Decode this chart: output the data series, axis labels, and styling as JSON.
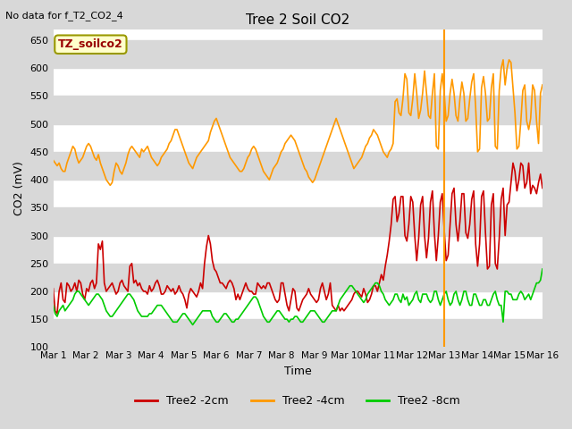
{
  "title": "Tree 2 Soil CO2",
  "no_data_text": "No data for f_T2_CO2_4",
  "xlabel": "Time",
  "ylabel": "CO2 (mV)",
  "ylim": [
    100,
    670
  ],
  "yticks": [
    100,
    150,
    200,
    250,
    300,
    350,
    400,
    450,
    500,
    550,
    600,
    650
  ],
  "xtick_labels": [
    "Mar 1",
    "Mar 2",
    "Mar 3",
    "Mar 4",
    "Mar 5",
    "Mar 6",
    "Mar 7",
    "Mar 8",
    "Mar 9",
    "Mar 10",
    "Mar 11",
    "Mar 12",
    "Mar 13",
    "Mar 14",
    "Mar 15",
    "Mar 16"
  ],
  "fig_bg_color": "#d8d8d8",
  "plot_bg_color": "#ffffff",
  "grid_color": "#d8d8d8",
  "legend_label": "TZ_soilco2",
  "legend_box_color": "#ffffcc",
  "legend_box_edge_color": "#999900",
  "legend_text_color": "#990000",
  "line_colors": {
    "2cm": "#cc0000",
    "4cm": "#ff9900",
    "8cm": "#00cc00"
  },
  "vertical_line_x": 12.0,
  "vertical_line_color": "#ff9900",
  "series_2cm": [
    205,
    165,
    160,
    200,
    215,
    185,
    180,
    215,
    210,
    200,
    205,
    215,
    200,
    220,
    215,
    195,
    185,
    205,
    200,
    215,
    220,
    205,
    215,
    285,
    275,
    290,
    215,
    200,
    205,
    210,
    215,
    205,
    195,
    200,
    215,
    220,
    210,
    205,
    200,
    245,
    250,
    215,
    220,
    210,
    215,
    205,
    200,
    200,
    195,
    210,
    200,
    205,
    215,
    220,
    210,
    195,
    195,
    200,
    210,
    205,
    200,
    205,
    195,
    200,
    210,
    200,
    195,
    185,
    170,
    195,
    205,
    200,
    195,
    190,
    200,
    215,
    205,
    250,
    280,
    300,
    285,
    255,
    240,
    235,
    225,
    215,
    215,
    210,
    205,
    215,
    220,
    215,
    205,
    185,
    195,
    185,
    195,
    205,
    215,
    205,
    200,
    200,
    195,
    195,
    215,
    210,
    205,
    210,
    205,
    215,
    215,
    205,
    195,
    185,
    180,
    185,
    215,
    215,
    195,
    175,
    165,
    185,
    205,
    200,
    170,
    165,
    175,
    185,
    190,
    195,
    205,
    195,
    190,
    185,
    180,
    185,
    205,
    215,
    200,
    185,
    195,
    215,
    175,
    170,
    165,
    175,
    165,
    170,
    165,
    170,
    175,
    180,
    185,
    195,
    200,
    200,
    195,
    190,
    205,
    195,
    180,
    185,
    195,
    210,
    210,
    200,
    215,
    230,
    220,
    245,
    265,
    290,
    320,
    365,
    370,
    325,
    340,
    370,
    370,
    300,
    290,
    320,
    370,
    360,
    300,
    255,
    295,
    355,
    370,
    300,
    260,
    295,
    360,
    380,
    305,
    255,
    300,
    360,
    375,
    310,
    255,
    265,
    320,
    375,
    385,
    320,
    290,
    325,
    375,
    375,
    305,
    295,
    320,
    365,
    380,
    285,
    245,
    285,
    370,
    380,
    305,
    240,
    245,
    355,
    375,
    250,
    240,
    295,
    365,
    385,
    300,
    355,
    360,
    395,
    430,
    415,
    380,
    400,
    430,
    425,
    385,
    395,
    430,
    375,
    390,
    385,
    375,
    395,
    410,
    385
  ],
  "series_4cm": [
    435,
    430,
    425,
    430,
    420,
    415,
    415,
    430,
    440,
    450,
    460,
    455,
    440,
    430,
    435,
    440,
    450,
    460,
    465,
    460,
    450,
    440,
    435,
    445,
    430,
    420,
    410,
    400,
    395,
    390,
    395,
    415,
    430,
    425,
    415,
    410,
    420,
    430,
    445,
    455,
    460,
    455,
    450,
    445,
    440,
    455,
    450,
    455,
    460,
    450,
    440,
    435,
    430,
    425,
    430,
    440,
    445,
    450,
    455,
    465,
    470,
    480,
    490,
    490,
    480,
    470,
    460,
    450,
    440,
    430,
    425,
    420,
    430,
    440,
    445,
    450,
    455,
    460,
    465,
    470,
    485,
    495,
    505,
    510,
    500,
    490,
    480,
    470,
    460,
    450,
    440,
    435,
    430,
    425,
    420,
    415,
    415,
    420,
    430,
    440,
    445,
    455,
    460,
    455,
    445,
    435,
    425,
    415,
    410,
    405,
    400,
    410,
    420,
    425,
    430,
    440,
    450,
    455,
    465,
    470,
    475,
    480,
    475,
    470,
    460,
    450,
    440,
    430,
    420,
    415,
    405,
    400,
    395,
    400,
    410,
    420,
    430,
    440,
    450,
    460,
    470,
    480,
    490,
    500,
    510,
    500,
    490,
    480,
    470,
    460,
    450,
    440,
    430,
    420,
    425,
    430,
    435,
    440,
    450,
    460,
    465,
    475,
    480,
    490,
    485,
    480,
    470,
    460,
    450,
    445,
    440,
    450,
    455,
    465,
    540,
    545,
    520,
    515,
    545,
    590,
    580,
    520,
    515,
    545,
    590,
    555,
    510,
    525,
    555,
    595,
    555,
    515,
    510,
    555,
    590,
    460,
    455,
    560,
    590,
    555,
    505,
    515,
    555,
    580,
    555,
    515,
    505,
    545,
    575,
    555,
    505,
    510,
    545,
    575,
    590,
    530,
    450,
    455,
    565,
    585,
    555,
    505,
    510,
    565,
    590,
    460,
    455,
    560,
    600,
    615,
    570,
    600,
    615,
    610,
    565,
    520,
    455,
    460,
    505,
    560,
    570,
    505,
    490,
    510,
    570,
    560,
    505,
    465,
    555,
    570
  ],
  "series_8cm": [
    175,
    160,
    155,
    165,
    170,
    175,
    165,
    170,
    175,
    180,
    185,
    195,
    200,
    200,
    195,
    190,
    185,
    180,
    175,
    180,
    185,
    190,
    195,
    195,
    190,
    185,
    175,
    165,
    160,
    155,
    155,
    160,
    165,
    170,
    175,
    180,
    185,
    190,
    195,
    195,
    190,
    185,
    175,
    165,
    160,
    155,
    155,
    155,
    155,
    160,
    160,
    165,
    170,
    175,
    175,
    175,
    170,
    165,
    160,
    155,
    150,
    145,
    145,
    145,
    150,
    155,
    160,
    160,
    155,
    150,
    145,
    140,
    145,
    150,
    155,
    160,
    165,
    165,
    165,
    165,
    165,
    155,
    150,
    145,
    145,
    150,
    155,
    160,
    160,
    155,
    150,
    145,
    145,
    150,
    150,
    155,
    160,
    165,
    170,
    175,
    180,
    185,
    190,
    190,
    185,
    175,
    165,
    155,
    150,
    145,
    145,
    150,
    155,
    160,
    165,
    165,
    160,
    155,
    150,
    150,
    145,
    150,
    150,
    155,
    155,
    150,
    145,
    145,
    150,
    155,
    160,
    165,
    165,
    165,
    160,
    155,
    150,
    145,
    145,
    150,
    155,
    160,
    165,
    165,
    165,
    175,
    185,
    190,
    195,
    200,
    205,
    210,
    210,
    205,
    200,
    195,
    190,
    185,
    180,
    185,
    195,
    200,
    205,
    210,
    215,
    215,
    210,
    200,
    195,
    185,
    180,
    175,
    180,
    185,
    195,
    195,
    185,
    180,
    195,
    185,
    190,
    175,
    180,
    185,
    195,
    200,
    185,
    180,
    195,
    195,
    195,
    185,
    180,
    185,
    200,
    200,
    185,
    175,
    185,
    195,
    200,
    185,
    175,
    180,
    195,
    200,
    185,
    175,
    185,
    200,
    200,
    185,
    175,
    175,
    195,
    195,
    185,
    175,
    175,
    185,
    185,
    175,
    175,
    185,
    195,
    200,
    185,
    175,
    175,
    145,
    200,
    200,
    195,
    195,
    185,
    185,
    185,
    195,
    200,
    195,
    185,
    190,
    195,
    185,
    195,
    205,
    215,
    215,
    220,
    240
  ]
}
